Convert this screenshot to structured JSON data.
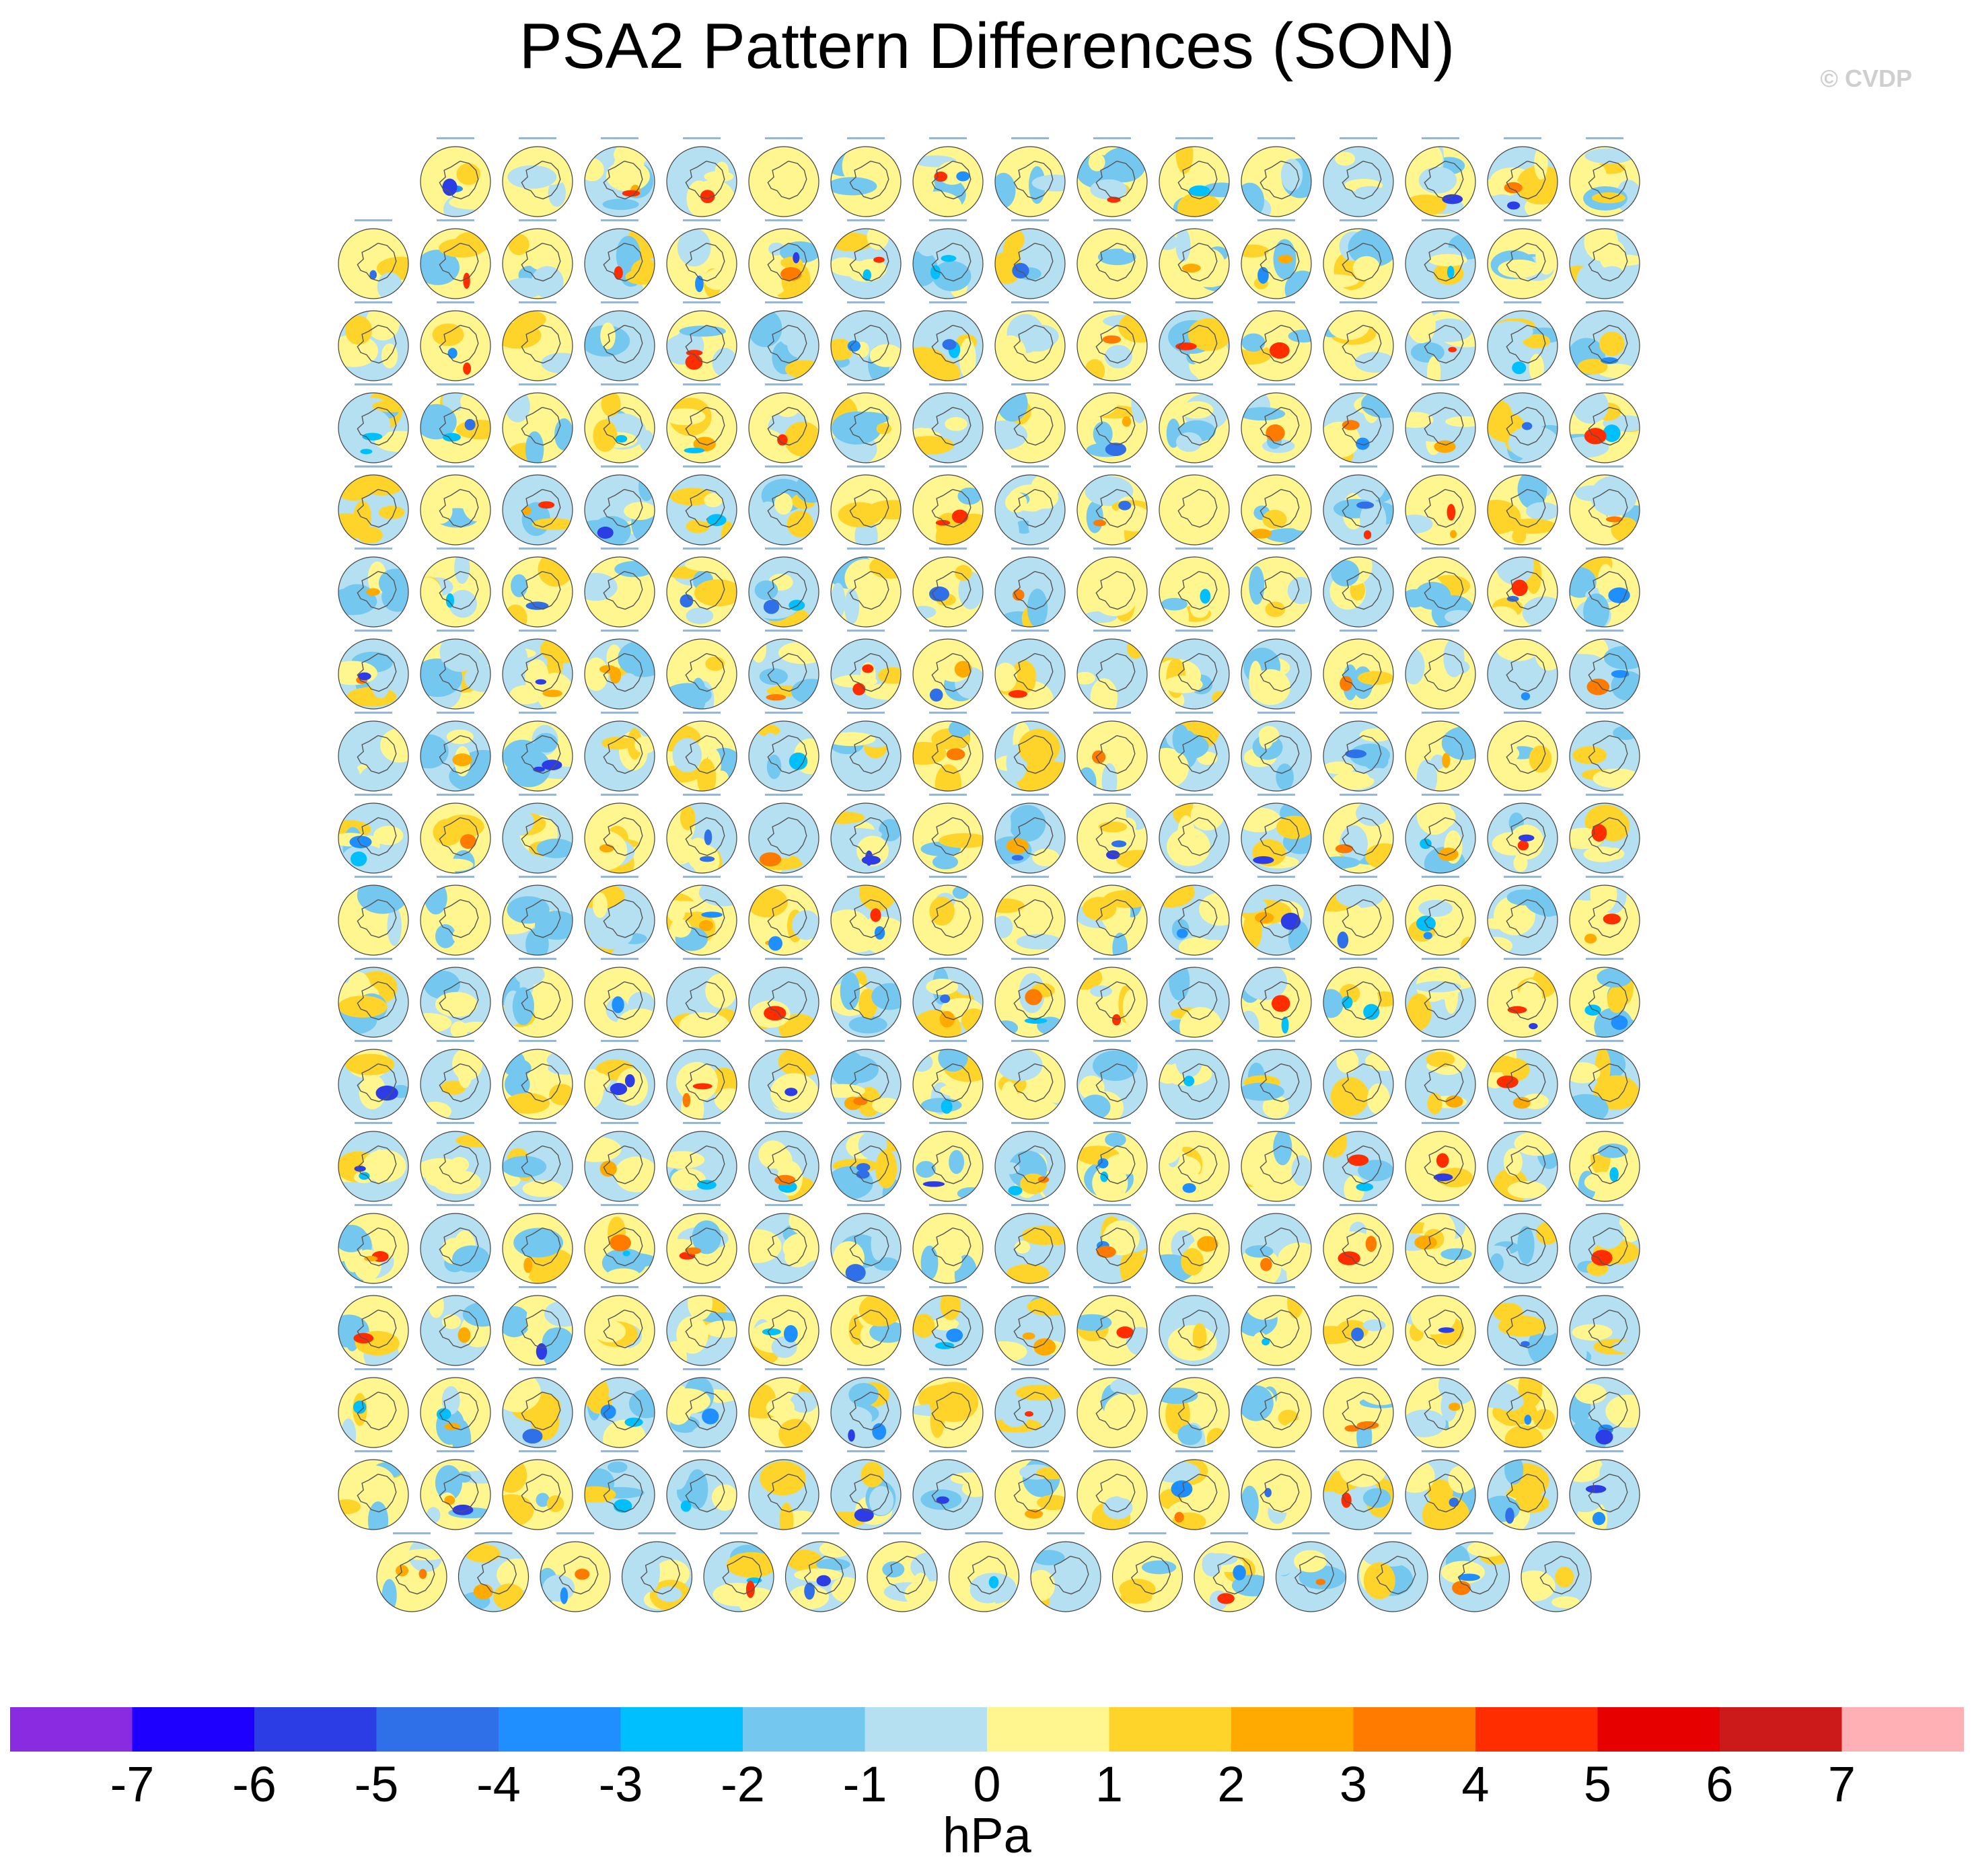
{
  "figure": {
    "title": "PSA2 Pattern Differences (SON)",
    "credit": "© CVDP",
    "units": "hPa"
  },
  "panel_grid": {
    "rows": [
      15,
      16,
      16,
      16,
      16,
      16,
      16,
      16,
      16,
      16,
      16,
      16,
      16,
      16,
      16,
      16,
      16,
      15
    ],
    "note_panel_type": "polar-stereographic south pole map"
  },
  "colorbar": {
    "tick_labels": [
      "-7",
      "-6",
      "-5",
      "-4",
      "-3",
      "-2",
      "-1",
      "0",
      "1",
      "2",
      "3",
      "4",
      "5",
      "6",
      "7"
    ],
    "colors": [
      "#8a2be2",
      "#1e00ff",
      "#2d3de6",
      "#2f6fe8",
      "#1f8fff",
      "#00bfff",
      "#74c8f0",
      "#b4e0f2",
      "#fff68f",
      "#ffd42a",
      "#ffaa00",
      "#ff7b00",
      "#ff2d00",
      "#e60000",
      "#cc1a1a",
      "#ffb0b4"
    ]
  },
  "style": {
    "land_line": "#555555",
    "map_background": "#b4e0f2"
  }
}
